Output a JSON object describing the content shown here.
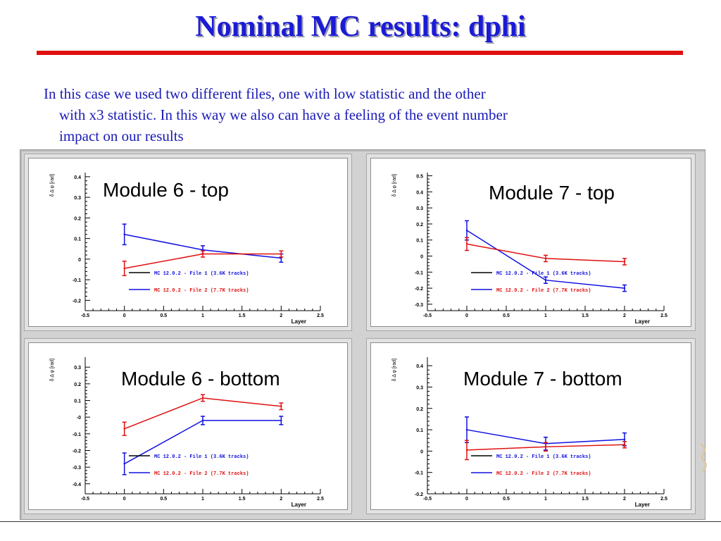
{
  "slide": {
    "title": "Nominal MC results: dphi",
    "intro_lines": [
      "In this case we used two different files, one with low statistic and the other",
      "with x3 statistic. In this way we also can have a feeling of the event number",
      "impact on our results"
    ]
  },
  "colors": {
    "title": "#1b1bd6",
    "rule": "#e01010",
    "series_file1": "#1010e0",
    "series_file2": "#e01010"
  },
  "chart_data": [
    {
      "type": "line",
      "overlay_label": "Module 6 - top",
      "xlabel": "Layer",
      "ylabel": "δ Δ φ [rad]",
      "xlim": [
        -0.5,
        2.5
      ],
      "ylim": [
        -0.25,
        0.42
      ],
      "xticks": [
        -0.5,
        0,
        0.5,
        1,
        1.5,
        2,
        2.5
      ],
      "xtick_labels": [
        "-0.5",
        "0",
        "0.5",
        "1",
        "1.5",
        "2",
        "2.5"
      ],
      "yticks": [
        -0.2,
        -0.1,
        0,
        0.1,
        0.2,
        0.3,
        0.4
      ],
      "ytick_labels": [
        "-0.2",
        "-0.1",
        "0",
        "0.1",
        "0.2",
        "0.3",
        "0.4"
      ],
      "legend": [
        {
          "label": "MC 12.0.2 - File 1 (3.6K tracks)",
          "color": "#1010e0",
          "line": "#000000"
        },
        {
          "label": "MC 12.0.2 - File 2 (7.7K tracks)",
          "color": "#e01010",
          "line": "#1010e0"
        }
      ],
      "series": [
        {
          "color": "#1010e0",
          "x": [
            0,
            1,
            2
          ],
          "y": [
            0.12,
            0.045,
            0.005
          ],
          "err": [
            0.05,
            0.02,
            0.02
          ]
        },
        {
          "color": "#e01010",
          "x": [
            0,
            1,
            2
          ],
          "y": [
            -0.045,
            0.025,
            0.025
          ],
          "err": [
            0.035,
            0.015,
            0.015
          ]
        }
      ]
    },
    {
      "type": "line",
      "overlay_label": "Module 7 - top",
      "xlabel": "Layer",
      "ylabel": "δ Δ φ [rad]",
      "xlim": [
        -0.5,
        2.5
      ],
      "ylim": [
        -0.34,
        0.52
      ],
      "xticks": [
        -0.5,
        0,
        0.5,
        1,
        1.5,
        2,
        2.5
      ],
      "xtick_labels": [
        "-0.5",
        "0",
        "0.5",
        "1",
        "1.5",
        "2",
        "2.5"
      ],
      "yticks": [
        -0.3,
        -0.2,
        -0.1,
        0,
        0.1,
        0.2,
        0.3,
        0.4,
        0.5
      ],
      "ytick_labels": [
        "-0.3",
        "-0.2",
        "-0.1",
        "0",
        "0.1",
        "0.2",
        "0.3",
        "0.4",
        "0.5"
      ],
      "legend": [
        {
          "label": "MC 12.0.2 - File 1 (3.6K tracks)",
          "color": "#1010e0",
          "line": "#000000"
        },
        {
          "label": "MC 12.0.2 - File 2 (7.7K tracks)",
          "color": "#e01010",
          "line": "#1010e0"
        }
      ],
      "series": [
        {
          "color": "#1010e0",
          "x": [
            0,
            1,
            2
          ],
          "y": [
            0.16,
            -0.15,
            -0.2
          ],
          "err": [
            0.06,
            0.02,
            0.02
          ]
        },
        {
          "color": "#e01010",
          "x": [
            0,
            1,
            2
          ],
          "y": [
            0.075,
            -0.015,
            -0.035
          ],
          "err": [
            0.04,
            0.02,
            0.02
          ]
        }
      ]
    },
    {
      "type": "line",
      "overlay_label": "Module 6 - bottom",
      "xlabel": "Layer",
      "ylabel": "δ Δ φ [rad]",
      "xlim": [
        -0.5,
        2.5
      ],
      "ylim": [
        -0.46,
        0.36
      ],
      "xticks": [
        -0.5,
        0,
        0.5,
        1,
        1.5,
        2,
        2.5
      ],
      "xtick_labels": [
        "-0.5",
        "0",
        "0.5",
        "1",
        "1.5",
        "2",
        "2.5"
      ],
      "yticks": [
        -0.4,
        -0.3,
        -0.2,
        -0.1,
        0,
        0.1,
        0.2,
        0.3
      ],
      "ytick_labels": [
        "-0.4",
        "-0.3",
        "-0.2",
        "-0.1",
        "-0",
        "0.1",
        "0.2",
        "0.3"
      ],
      "legend": [
        {
          "label": "MC 12.0.2 - File 1 (3.6K tracks)",
          "color": "#1010e0",
          "line": "#000000"
        },
        {
          "label": "MC 12.0.2 - File 2 (7.7K tracks)",
          "color": "#e01010",
          "line": "#1010e0"
        }
      ],
      "series": [
        {
          "color": "#1010e0",
          "x": [
            0,
            1,
            2
          ],
          "y": [
            -0.28,
            -0.02,
            -0.02
          ],
          "err": [
            0.065,
            0.025,
            0.025
          ]
        },
        {
          "color": "#e01010",
          "x": [
            0,
            1,
            2
          ],
          "y": [
            -0.07,
            0.115,
            0.065
          ],
          "err": [
            0.04,
            0.02,
            0.02
          ]
        }
      ]
    },
    {
      "type": "line",
      "overlay_label": "Module 7 - bottom",
      "xlabel": "Layer",
      "ylabel": "δ Δ φ [rad]",
      "xlim": [
        -0.5,
        2.5
      ],
      "ylim": [
        -0.2,
        0.44
      ],
      "xticks": [
        -0.5,
        0,
        0.5,
        1,
        1.5,
        2,
        2.5
      ],
      "xtick_labels": [
        "-0.5",
        "0",
        "0.5",
        "1",
        "1.5",
        "2",
        "2.5"
      ],
      "yticks": [
        -0.2,
        -0.1,
        0,
        0.1,
        0.2,
        0.3,
        0.4
      ],
      "ytick_labels": [
        "-0.2",
        "-0.1",
        "0",
        "0.1",
        "0.2",
        "0.3",
        "0.4"
      ],
      "legend": [
        {
          "label": "MC 12.0.2 - File 1 (3.6K tracks)",
          "color": "#1010e0",
          "line": "#000000"
        },
        {
          "label": "MC 12.0.2 - File 2 (7.7K tracks)",
          "color": "#e01010",
          "line": "#1010e0"
        }
      ],
      "series": [
        {
          "color": "#1010e0",
          "x": [
            0,
            1,
            2
          ],
          "y": [
            0.1,
            0.035,
            0.055
          ],
          "err": [
            0.06,
            0.03,
            0.03
          ]
        },
        {
          "color": "#e01010",
          "x": [
            0,
            1,
            2
          ],
          "y": [
            0.005,
            0.02,
            0.03
          ],
          "err": [
            0.045,
            0.02,
            0.015
          ]
        }
      ]
    }
  ]
}
